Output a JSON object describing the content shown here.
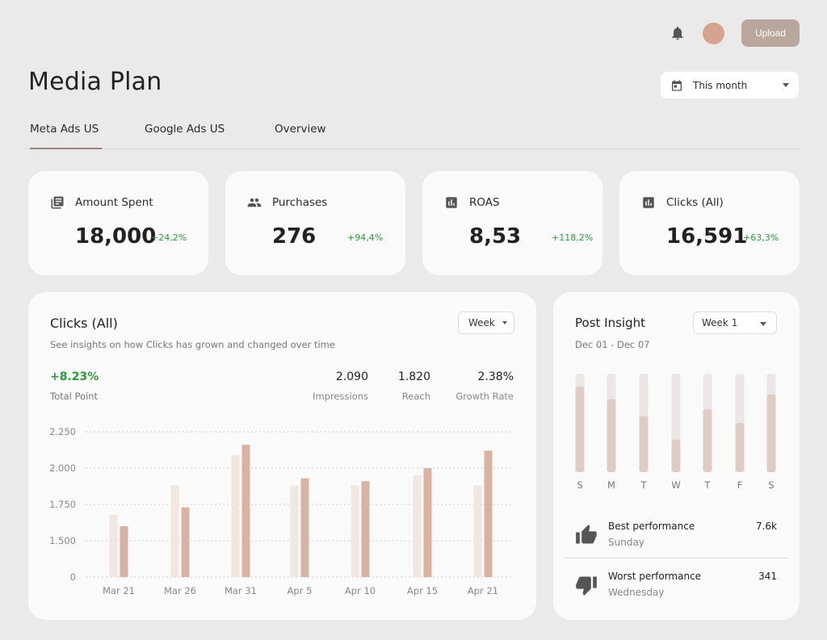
{
  "header": {
    "title": "Media Plan",
    "upload_label": "Upload",
    "date_range": "This month"
  },
  "tabs": [
    {
      "label": "Meta Ads US",
      "active": true
    },
    {
      "label": "Google Ads US",
      "active": false
    },
    {
      "label": "Overview",
      "active": false
    }
  ],
  "kpis": [
    {
      "label": "Amount Spent",
      "value": "18,000",
      "delta": "+24,2%",
      "icon": "receipt-icon"
    },
    {
      "label": "Purchases",
      "value": "276",
      "delta": "+94,4%",
      "icon": "people-icon"
    },
    {
      "label": "ROAS",
      "value": "8,53",
      "delta": "+118,2%",
      "icon": "bar-chart-icon"
    },
    {
      "label": "Clicks (All)",
      "value": "16,591",
      "delta": "+63,3%",
      "icon": "bar-chart-icon"
    }
  ],
  "clicks_card": {
    "title": "Clicks (All)",
    "subtitle": "See insights on how Clicks has grown and changed over time",
    "period_select": "Week",
    "total_point": "+8.23%",
    "total_point_label": "Total Point",
    "stats": [
      {
        "value": "2.090",
        "label": "Impressions"
      },
      {
        "value": "1.820",
        "label": "Reach"
      },
      {
        "value": "2.38%",
        "label": "Growth Rate"
      }
    ]
  },
  "chart_data": {
    "type": "bar",
    "categories": [
      "Mar 21",
      "Mar 26",
      "Mar 31",
      "Apr 5",
      "Apr 10",
      "Apr 15",
      "Apr 21"
    ],
    "series": [
      {
        "values": [
          1680,
          1880,
          2090,
          1880,
          1880,
          1950,
          1880
        ]
      },
      {
        "values": [
          1600,
          1730,
          2160,
          1930,
          1910,
          2000,
          2120
        ]
      }
    ],
    "y_ticks": [
      "2.250",
      "2.000",
      "1.750",
      "1.500",
      "0"
    ],
    "grid": true,
    "colors": [
      "#f2e6e0",
      "#d9b3a2"
    ]
  },
  "insight_card": {
    "title": "Post Insight",
    "period_select": "Week 1",
    "date_range": "Dec 01 - Dec 07",
    "days": [
      "S",
      "M",
      "T",
      "W",
      "T",
      "F",
      "S"
    ],
    "day_levels": [
      0.87,
      0.74,
      0.57,
      0.33,
      0.64,
      0.5,
      0.79
    ],
    "best_label": "Best performance",
    "best_day": "Sunday",
    "best_value": "7.6k",
    "worst_label": "Worst performance",
    "worst_day": "Wednesday",
    "worst_value": "341"
  },
  "colors": {
    "accent": "#b9a69c",
    "positive": "#2a9a3a",
    "avatar": "#d5a490"
  }
}
